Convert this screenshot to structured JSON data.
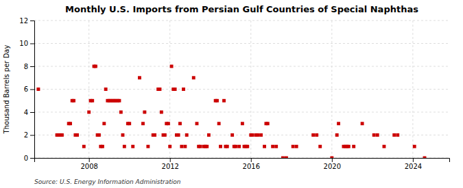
{
  "chart_data": {
    "type": "scatter",
    "title": "Monthly U.S. Imports from Persian Gulf Countries of Special Naphthas",
    "ylabel": "Thousand Barrels per Day",
    "annotations": [
      "Source: U.S. Energy Information Administration"
    ],
    "color": "#CC0000",
    "marker": "square",
    "grid": true,
    "xlim": [
      2005.3,
      2025.8
    ],
    "xticks": [
      2008,
      2012,
      2016,
      2020,
      2024
    ],
    "ylim": [
      0,
      12
    ],
    "yticks": [
      0,
      2,
      4,
      6,
      8,
      10,
      12
    ],
    "x": [
      2005.5,
      2006.42,
      2006.5,
      2006.58,
      2006.67,
      2007.0,
      2007.08,
      2007.17,
      2007.25,
      2007.33,
      2007.42,
      2007.75,
      2008.0,
      2008.08,
      2008.17,
      2008.25,
      2008.33,
      2008.42,
      2008.5,
      2008.58,
      2008.67,
      2008.75,
      2008.83,
      2008.92,
      2009.0,
      2009.08,
      2009.17,
      2009.25,
      2009.33,
      2009.42,
      2009.5,
      2009.58,
      2009.67,
      2009.75,
      2009.92,
      2010.0,
      2010.17,
      2010.5,
      2010.67,
      2010.75,
      2010.92,
      2011.17,
      2011.25,
      2011.42,
      2011.5,
      2011.58,
      2011.67,
      2011.75,
      2011.83,
      2011.92,
      2012.0,
      2012.08,
      2012.17,
      2012.25,
      2012.33,
      2012.42,
      2012.5,
      2012.58,
      2012.67,
      2012.75,
      2012.83,
      2013.17,
      2013.33,
      2013.42,
      2013.5,
      2013.67,
      2013.75,
      2013.83,
      2013.92,
      2014.25,
      2014.33,
      2014.42,
      2014.5,
      2014.67,
      2014.75,
      2014.83,
      2015.08,
      2015.17,
      2015.25,
      2015.42,
      2015.58,
      2015.67,
      2015.75,
      2015.83,
      2016.0,
      2016.08,
      2016.25,
      2016.33,
      2016.5,
      2016.67,
      2016.75,
      2016.83,
      2017.08,
      2017.25,
      2017.58,
      2017.75,
      2018.08,
      2018.25,
      2019.08,
      2019.25,
      2019.42,
      2020.0,
      2020.25,
      2020.33,
      2020.58,
      2020.67,
      2020.75,
      2020.83,
      2021.08,
      2021.5,
      2022.08,
      2022.25,
      2022.58,
      2023.08,
      2023.25,
      2024.08,
      2024.58
    ],
    "values": [
      6,
      2,
      2,
      2,
      2,
      3,
      3,
      5,
      5,
      2,
      2,
      1,
      4,
      5,
      5,
      8,
      8,
      2,
      2,
      1,
      1,
      3,
      6,
      5,
      5,
      5,
      5,
      5,
      5,
      5,
      5,
      4,
      2,
      1,
      3,
      3,
      1,
      7,
      3,
      4,
      1,
      2,
      2,
      6,
      6,
      4,
      2,
      2,
      3,
      3,
      1,
      8,
      6,
      6,
      2,
      2,
      3,
      1,
      6,
      1,
      2,
      7,
      3,
      1,
      1,
      1,
      1,
      1,
      2,
      5,
      5,
      3,
      1,
      5,
      1,
      1,
      2,
      1,
      1,
      1,
      3,
      1,
      1,
      1,
      2,
      2,
      2,
      2,
      2,
      1,
      3,
      3,
      1,
      1,
      0,
      0,
      1,
      1,
      2,
      2,
      1,
      0,
      2,
      3,
      1,
      1,
      1,
      1,
      1,
      3,
      2,
      2,
      1,
      2,
      2,
      1,
      0
    ]
  }
}
